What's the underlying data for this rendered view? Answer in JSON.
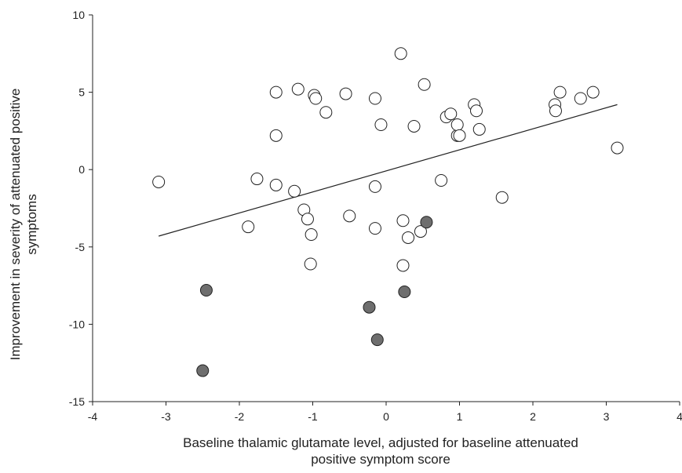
{
  "chart_data": {
    "type": "scatter",
    "title": "",
    "xlabel_lines": [
      "Baseline thalamic glutamate level, adjusted for baseline attenuated",
      "positive symptom score"
    ],
    "ylabel_lines": [
      "Improvement in severity of attenuated positive",
      "symptoms"
    ],
    "xlim": [
      -4,
      4
    ],
    "ylim": [
      -15,
      10
    ],
    "xticks": [
      "-4",
      "-3",
      "-2",
      "-1",
      "0",
      "1",
      "2",
      "3",
      "4"
    ],
    "yticks": [
      "10",
      "5",
      "0",
      "-5",
      "-10",
      "-15"
    ],
    "grid": false,
    "legend": "none",
    "colors": {
      "open_marker_fill": "#ffffff",
      "filled_marker_fill": "#6e6e6e",
      "stroke": "#222222"
    },
    "series": [
      {
        "marker": "open-circle",
        "points": [
          [
            -3.1,
            -0.8
          ],
          [
            -1.88,
            -3.7
          ],
          [
            -1.76,
            -0.6
          ],
          [
            -1.5,
            5.0
          ],
          [
            -1.5,
            2.2
          ],
          [
            -1.5,
            -1.0
          ],
          [
            -1.25,
            -1.4
          ],
          [
            -1.2,
            5.2
          ],
          [
            -1.12,
            -2.6
          ],
          [
            -1.07,
            -3.2
          ],
          [
            -1.03,
            -6.1
          ],
          [
            -1.02,
            -4.2
          ],
          [
            -0.98,
            4.8
          ],
          [
            -0.96,
            4.6
          ],
          [
            -0.82,
            3.7
          ],
          [
            -0.55,
            4.9
          ],
          [
            -0.5,
            -3.0
          ],
          [
            -0.15,
            4.6
          ],
          [
            -0.15,
            -1.1
          ],
          [
            -0.15,
            -3.8
          ],
          [
            -0.07,
            2.9
          ],
          [
            0.2,
            7.5
          ],
          [
            0.23,
            -3.3
          ],
          [
            0.23,
            -6.2
          ],
          [
            0.3,
            -4.4
          ],
          [
            0.38,
            2.8
          ],
          [
            0.47,
            -4.0
          ],
          [
            0.52,
            5.5
          ],
          [
            0.75,
            -0.7
          ],
          [
            0.82,
            3.4
          ],
          [
            0.88,
            3.6
          ],
          [
            0.97,
            2.2
          ],
          [
            0.97,
            2.9
          ],
          [
            1.0,
            2.2
          ],
          [
            1.2,
            4.2
          ],
          [
            1.23,
            3.8
          ],
          [
            1.27,
            2.6
          ],
          [
            1.58,
            -1.8
          ],
          [
            2.3,
            4.2
          ],
          [
            2.31,
            3.8
          ],
          [
            2.37,
            5.0
          ],
          [
            2.65,
            4.6
          ],
          [
            2.82,
            5.0
          ],
          [
            3.15,
            1.4
          ]
        ]
      },
      {
        "marker": "filled-circle",
        "points": [
          [
            -2.5,
            -13.0
          ],
          [
            -2.45,
            -7.8
          ],
          [
            -0.23,
            -8.9
          ],
          [
            -0.12,
            -11.0
          ],
          [
            0.25,
            -7.9
          ],
          [
            0.55,
            -3.4
          ]
        ]
      }
    ],
    "trendline": {
      "x": [
        -3.1,
        3.15
      ],
      "y": [
        -4.3,
        4.2
      ]
    }
  }
}
